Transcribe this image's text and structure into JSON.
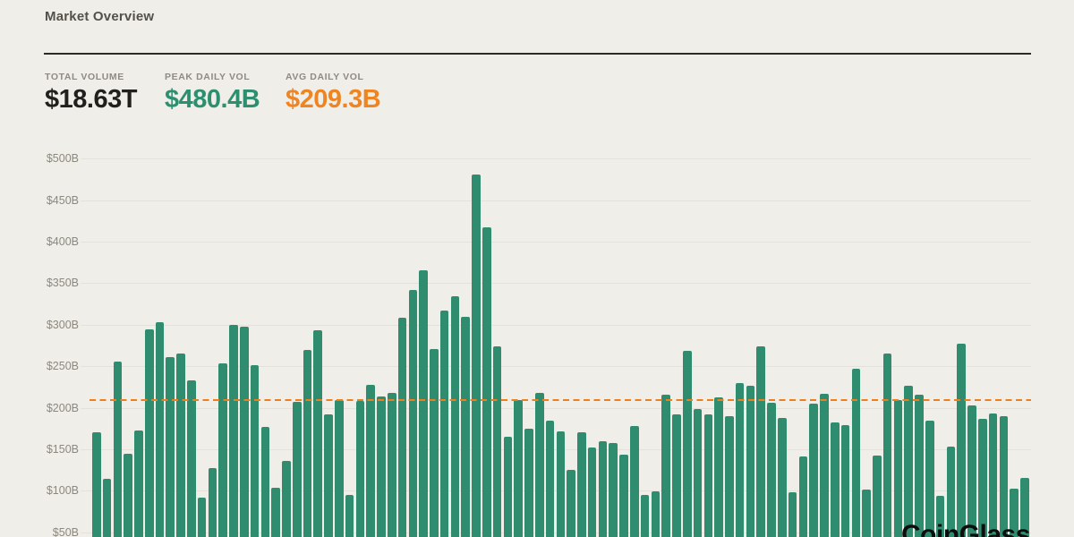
{
  "header": {
    "title": "Market Overview"
  },
  "stats": [
    {
      "label": "TOTAL VOLUME",
      "value": "$18.63T",
      "color": "#21201c"
    },
    {
      "label": "PEAK DAILY VOL",
      "value": "$480.4B",
      "color": "#2e8f70"
    },
    {
      "label": "AVG DAILY VOL",
      "value": "$209.3B",
      "color": "#ee8522"
    }
  ],
  "watermark": {
    "text": "CoinGlass"
  },
  "chart_data": {
    "type": "bar",
    "title": "",
    "xlabel": "",
    "ylabel": "",
    "y_tick_labels": [
      "$500B",
      "$450B",
      "$400B",
      "$350B",
      "$300B",
      "$250B",
      "$200B",
      "$150B",
      "$100B",
      "$50B"
    ],
    "y_tick_values": [
      500,
      450,
      400,
      350,
      300,
      250,
      200,
      150,
      100,
      50
    ],
    "ylim_visible": [
      44,
      500
    ],
    "grid": true,
    "values": [
      170,
      114,
      256,
      145,
      173,
      294,
      303,
      261,
      265,
      233,
      92,
      127,
      253,
      300,
      298,
      251,
      177,
      104,
      136,
      207,
      270,
      293,
      192,
      209,
      95,
      208,
      228,
      214,
      218,
      308,
      342,
      366,
      271,
      317,
      334,
      310,
      480.4,
      417,
      274,
      165,
      209,
      175,
      218,
      184,
      171,
      125,
      170,
      152,
      160,
      158,
      144,
      178,
      95,
      99,
      216,
      192,
      269,
      199,
      192,
      212,
      190,
      230,
      227,
      274,
      206,
      188,
      98,
      141,
      205,
      217,
      182,
      179,
      247,
      101,
      142,
      265,
      209,
      226,
      216,
      184,
      94,
      153,
      277,
      203,
      187,
      193,
      190,
      102,
      115
    ],
    "avg_line_value": 209.3,
    "peak_value": 480.4,
    "bar_color": "#2f8c6f",
    "avg_line_color": "#ed7f1e",
    "grid_color": "#e3e1da",
    "background_color": "#efeee9",
    "legend": false
  }
}
